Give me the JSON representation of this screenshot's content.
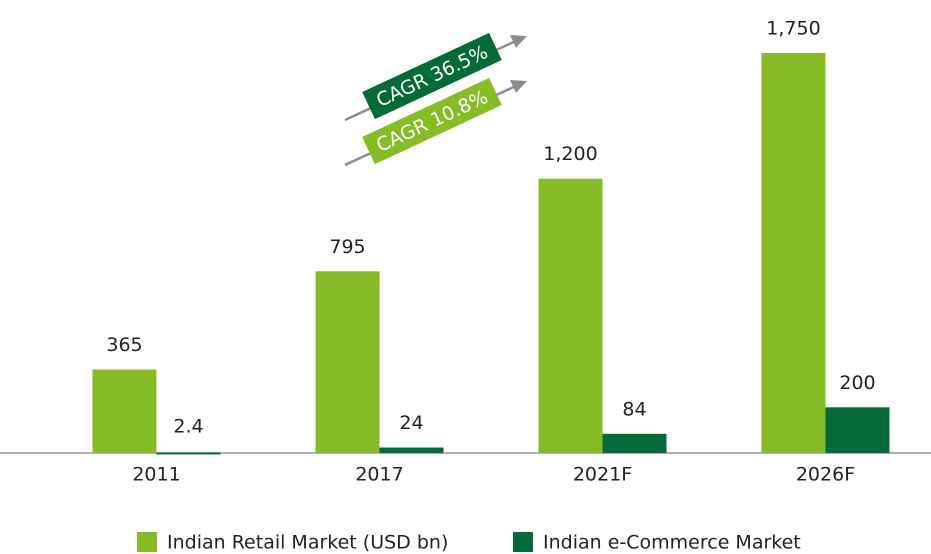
{
  "chart_data": {
    "type": "bar",
    "categories": [
      "2011",
      "2017",
      "2021F",
      "2026F"
    ],
    "series": [
      {
        "name": "Indian Retail Market (USD bn)",
        "color": "#86bc25",
        "values": [
          365,
          795,
          1200,
          1750
        ],
        "value_labels": [
          "365",
          "795",
          "1,200",
          "1,750"
        ]
      },
      {
        "name": "Indian e-Commerce Market",
        "color": "#046a38",
        "values": [
          2.4,
          24,
          84,
          200
        ]
      }
    ],
    "annotations": [
      "CAGR 36.5%",
      "CAGR 10.8%"
    ],
    "ylim": [
      0,
      1750
    ]
  }
}
